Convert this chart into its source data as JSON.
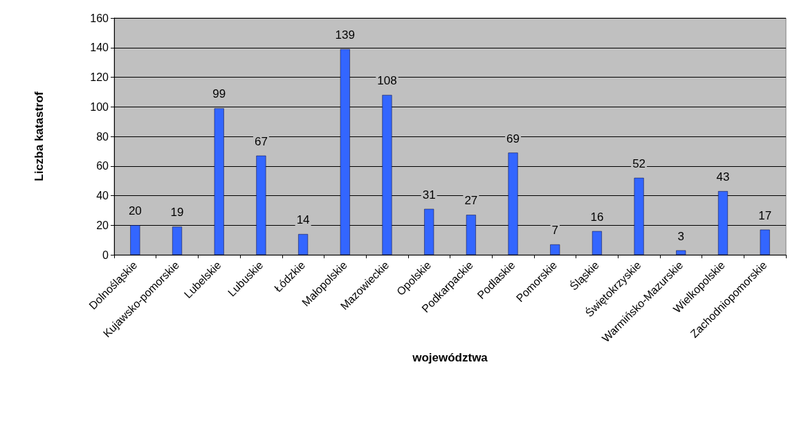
{
  "chart_data": {
    "type": "bar",
    "xlabel": "województwa",
    "ylabel": "Liczba katastrof",
    "categories": [
      "Dolnośląskie",
      "Kujawsko-pomorskie",
      "Lubelskie",
      "Lubuskie",
      "Łódzkie",
      "Małopolskie",
      "Mazowieckie",
      "Opolskie",
      "Podkarpackie",
      "Podlaskie",
      "Pomorskie",
      "Śląskie",
      "Świętokrzyskie",
      "Warmińsko-Mazurskie",
      "Wielkopolskie",
      "Zachodniopomorskie"
    ],
    "values": [
      20,
      19,
      99,
      67,
      14,
      139,
      108,
      31,
      27,
      69,
      7,
      16,
      52,
      3,
      43,
      17
    ],
    "color": "#3366ff",
    "ylim": [
      0,
      160
    ],
    "yticks": [
      0,
      20,
      40,
      60,
      80,
      100,
      120,
      140,
      160
    ],
    "grid": "y",
    "data_labels": true
  }
}
